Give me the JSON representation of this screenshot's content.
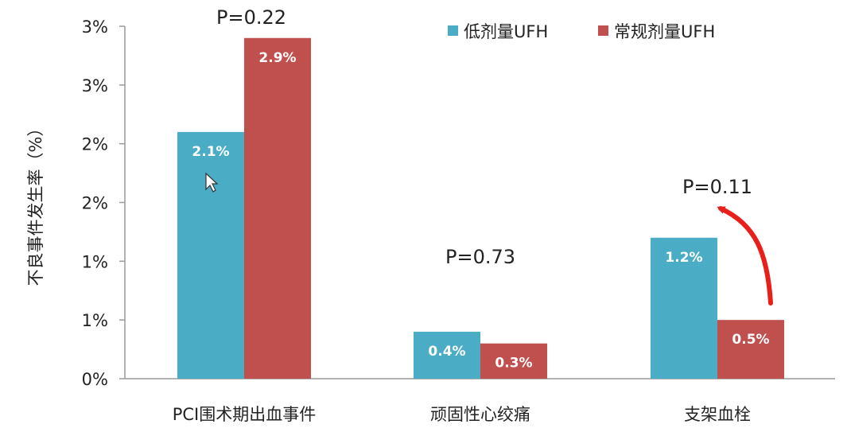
{
  "chart_data": {
    "type": "bar",
    "ylabel": "不良事件发生率（%）",
    "categories": [
      "PCI围术期出血事件",
      "顽固性心绞痛",
      "支架血栓"
    ],
    "series": [
      {
        "name": "低剂量UFH",
        "color": "#4bacc6",
        "values": [
          2.1,
          0.4,
          1.2
        ],
        "labels": [
          "2.1%",
          "0.4%",
          "1.2%"
        ]
      },
      {
        "name": "常规剂量UFH",
        "color": "#c0504d",
        "values": [
          2.9,
          0.3,
          0.5
        ],
        "labels": [
          "2.9%",
          "0.3%",
          "0.5%"
        ]
      }
    ],
    "ylim": [
      0,
      3
    ],
    "y_ticks": [
      0,
      0.5,
      1,
      1.5,
      2,
      2.5,
      3
    ],
    "y_tick_labels": [
      "0%",
      "1%",
      "1%",
      "2%",
      "2%",
      "3%",
      "3%"
    ],
    "p_values": [
      "P=0.22",
      "P=0.73",
      "P=0.11"
    ],
    "legend_position": "top-right",
    "grid": false,
    "annotation_arrow_color": "#e8201a"
  }
}
